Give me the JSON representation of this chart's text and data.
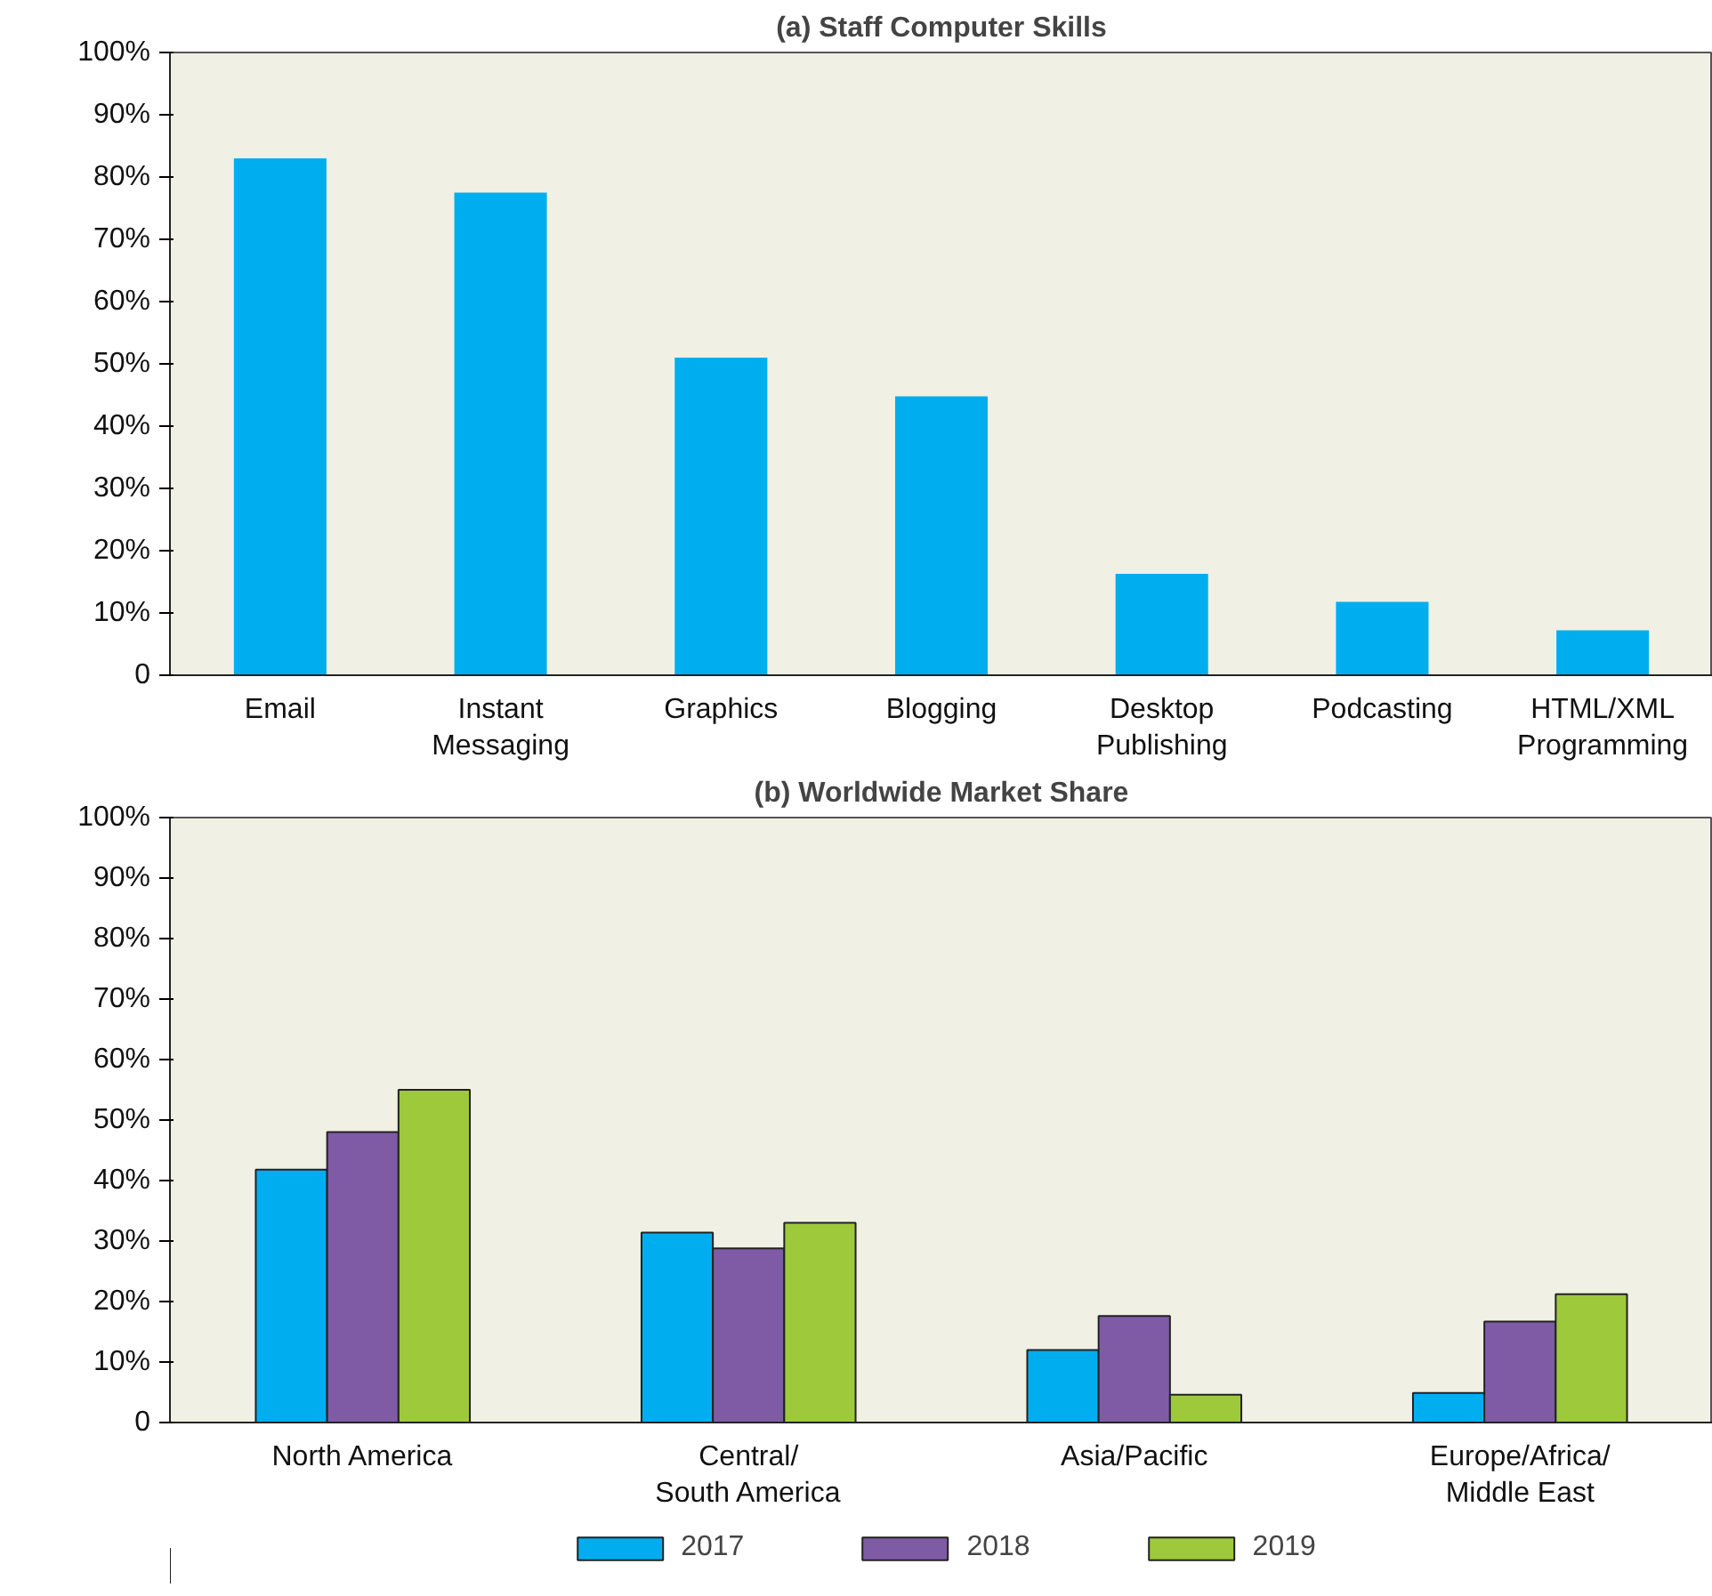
{
  "chart_data": [
    {
      "type": "bar",
      "title": "(a) Staff Computer Skills",
      "categories": [
        "Email",
        "Instant\nMessaging",
        "Graphics",
        "Blogging",
        "Desktop\nPublishing",
        "Podcasting",
        "HTML/XML\nProgramming"
      ],
      "values": [
        83,
        77.5,
        51,
        44.8,
        16.3,
        11.8,
        7.2
      ],
      "color": "#00aeef",
      "ylim": [
        0,
        100
      ],
      "yticks": [
        0,
        {
          "value": 10,
          "label": "10%"
        },
        {
          "value": 20,
          "label": "20%"
        },
        {
          "value": 30,
          "label": "30%"
        },
        {
          "value": 40,
          "label": "40%"
        },
        {
          "value": 50,
          "label": "50%"
        },
        {
          "value": 60,
          "label": "60%"
        },
        {
          "value": 70,
          "label": "70%"
        },
        {
          "value": 80,
          "label": "80%"
        },
        {
          "value": 90,
          "label": "90%"
        },
        {
          "value": 100,
          "label": "100%"
        }
      ],
      "grid": false
    },
    {
      "type": "bar",
      "title": "(b) Worldwide Market Share",
      "categories": [
        "North America",
        "Central/\nSouth America",
        "Asia/Pacific",
        "Europe/Africa/\nMiddle East"
      ],
      "series": [
        {
          "name": "2017",
          "color": "#00aeef",
          "values": [
            41.8,
            31.4,
            12,
            4.9
          ]
        },
        {
          "name": "2018",
          "color": "#7f5ba6",
          "values": [
            48,
            28.8,
            17.6,
            16.7
          ]
        },
        {
          "name": "2019",
          "color": "#9dc93b",
          "values": [
            55,
            33,
            4.6,
            21.2
          ]
        }
      ],
      "ylim": [
        0,
        100
      ],
      "yticks": [
        0,
        {
          "value": 10,
          "label": "10%"
        },
        {
          "value": 20,
          "label": "20%"
        },
        {
          "value": 30,
          "label": "30%"
        },
        {
          "value": 40,
          "label": "40%"
        },
        {
          "value": 50,
          "label": "50%"
        },
        {
          "value": 60,
          "label": "60%"
        },
        {
          "value": 70,
          "label": "70%"
        },
        {
          "value": 80,
          "label": "80%"
        },
        {
          "value": 90,
          "label": "90%"
        },
        {
          "value": 100,
          "label": "100%"
        }
      ],
      "grid": false,
      "legend": "bottom"
    }
  ]
}
